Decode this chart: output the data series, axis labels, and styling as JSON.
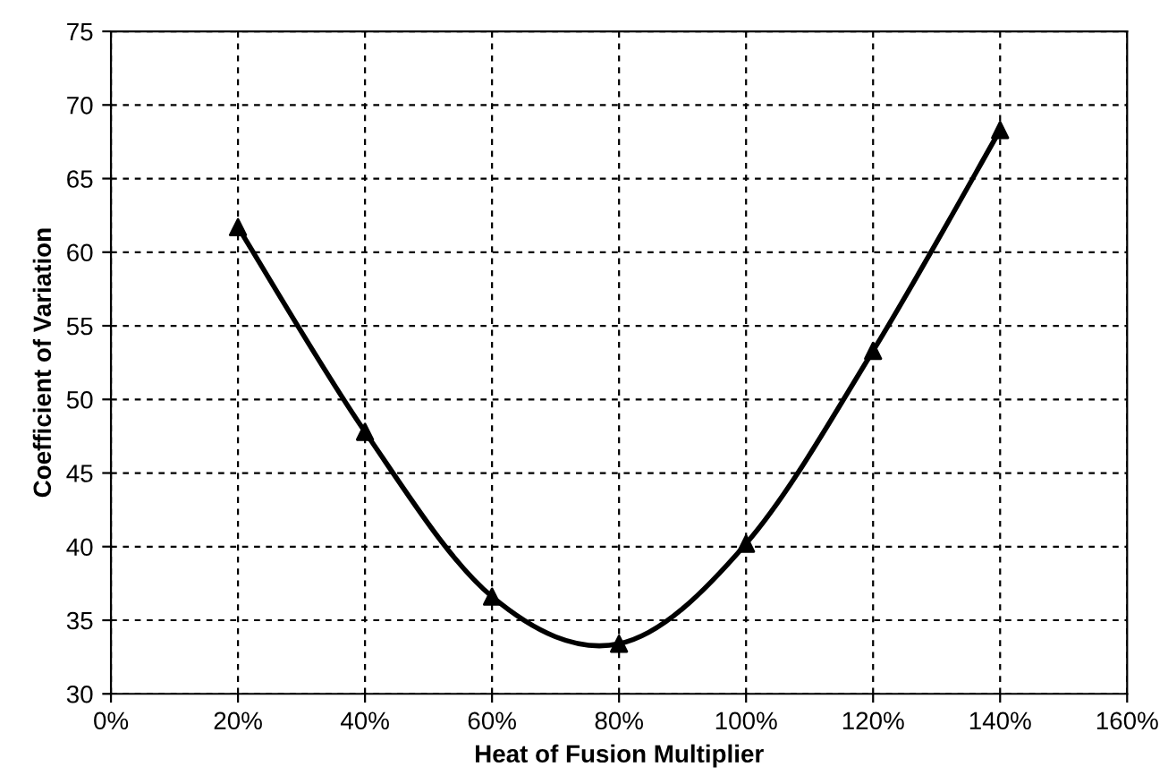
{
  "chart_data": {
    "type": "line",
    "xlabel": "Heat of Fusion Multiplier",
    "ylabel": "Coefficient of Variation",
    "x": [
      20,
      40,
      60,
      80,
      100,
      120,
      140
    ],
    "series": [
      {
        "color": "#000000",
        "values": [
          61.7,
          47.8,
          36.6,
          33.4,
          40.2,
          53.3,
          68.3
        ]
      }
    ],
    "xlim": [
      0,
      160
    ],
    "xticks": [
      {
        "value": 0,
        "label": "0%"
      },
      {
        "value": 20,
        "label": "20%"
      },
      {
        "value": 40,
        "label": "40%"
      },
      {
        "value": 60,
        "label": "60%"
      },
      {
        "value": 80,
        "label": "80%"
      },
      {
        "value": 100,
        "label": "100%"
      },
      {
        "value": 120,
        "label": "120%"
      },
      {
        "value": 140,
        "label": "140%"
      },
      {
        "value": 160,
        "label": "160%"
      }
    ],
    "ylim": [
      30,
      75
    ],
    "yticks": [
      30,
      35,
      40,
      45,
      50,
      55,
      60,
      65,
      70,
      75
    ],
    "grid": true,
    "marker": "triangle",
    "line_style": "solid"
  }
}
